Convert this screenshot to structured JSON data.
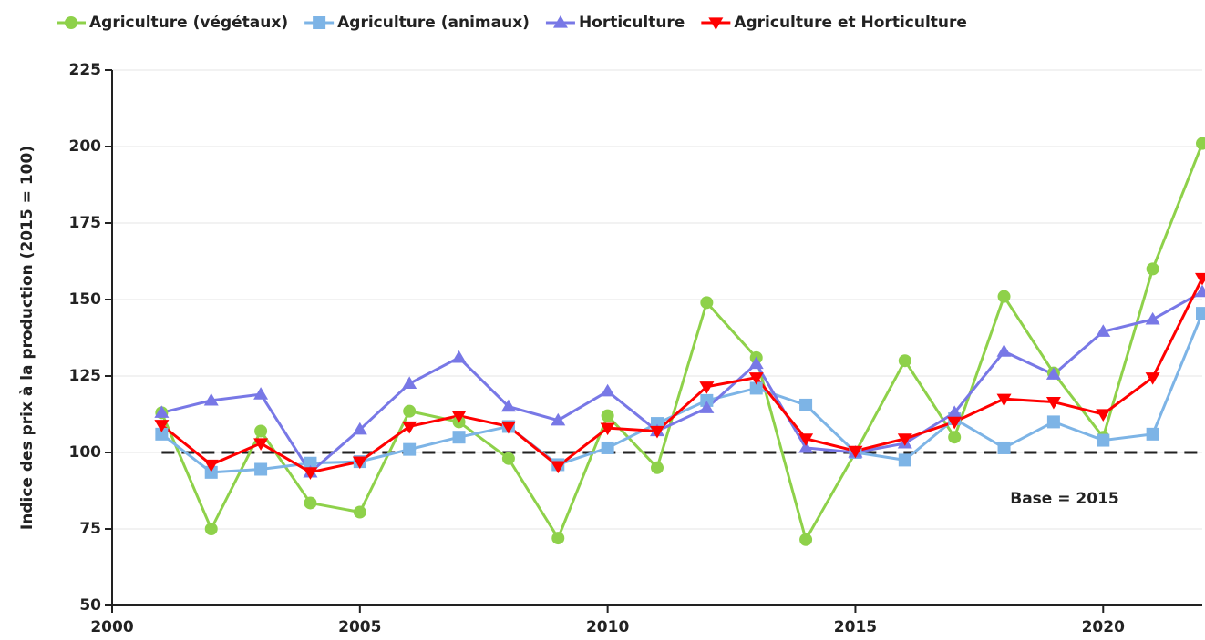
{
  "chart_data": {
    "type": "line",
    "ylabel": "Indice des prix à la production (2015 = 100)",
    "x": [
      2001,
      2002,
      2003,
      2004,
      2005,
      2006,
      2007,
      2008,
      2009,
      2010,
      2011,
      2012,
      2013,
      2014,
      2015,
      2016,
      2017,
      2018,
      2019,
      2020,
      2021,
      2022
    ],
    "series": [
      {
        "name": "Agriculture (végétaux)",
        "color": "#8ed14a",
        "marker": "circle",
        "values": [
          113,
          75,
          107,
          83.5,
          80.5,
          113.5,
          110,
          98,
          72,
          112,
          95,
          149,
          131,
          71.5,
          100,
          130,
          105,
          151,
          126,
          105,
          160,
          201
        ]
      },
      {
        "name": "Agriculture (animaux)",
        "color": "#7db4e6",
        "marker": "square",
        "values": [
          106,
          93.5,
          94.5,
          96.5,
          97,
          101,
          105,
          108.5,
          96,
          101.5,
          109.5,
          117,
          121,
          115.5,
          100,
          97.5,
          111,
          101.5,
          110,
          104,
          106,
          145.5
        ]
      },
      {
        "name": "Horticulture",
        "color": "#7878e6",
        "marker": "triangle-up",
        "values": [
          113,
          117,
          119,
          93.5,
          107.5,
          122.5,
          131,
          115,
          110.5,
          120,
          107,
          114.5,
          129,
          101.5,
          100,
          103,
          113,
          133,
          125.5,
          139.5,
          143.5,
          152.5
        ]
      },
      {
        "name": "Agriculture et Horticulture",
        "color": "#ff0000",
        "marker": "triangle-down",
        "values": [
          109,
          96,
          103,
          93.5,
          97,
          108.5,
          112,
          108.5,
          95.5,
          108,
          107,
          121.5,
          124.5,
          104.5,
          100.5,
          104.5,
          110,
          117.5,
          116.5,
          112.5,
          124.5,
          157
        ]
      }
    ],
    "xlim": [
      2000,
      2022
    ],
    "xticks": [
      2000,
      2005,
      2010,
      2015,
      2020
    ],
    "ylim": [
      50,
      225
    ],
    "yticks": [
      50,
      75,
      100,
      125,
      150,
      175,
      200,
      225
    ],
    "grid": true,
    "legend": "top",
    "reference_line": 100,
    "annotation": "Base = 2015"
  }
}
